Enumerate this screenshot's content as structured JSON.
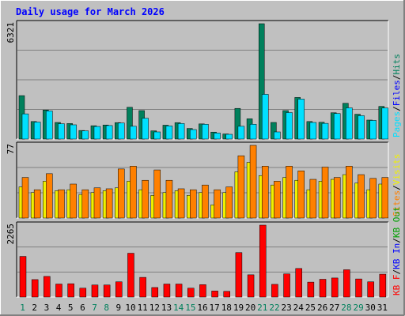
{
  "title": "Daily usage for March 2026",
  "colors": {
    "background": "#c0c0c0",
    "frame_light": "#ffffff",
    "frame_dark": "#808080",
    "plot_bg": "#c0c0c0",
    "gridline": "#808080",
    "title": "#0000ff",
    "hits": "#00805c",
    "files": "#0000ff",
    "pages": "#00e0ff",
    "visits": "#f0f000",
    "sites": "#ff8000",
    "kbf": "#ff0000",
    "kbin": "#0000ff",
    "kbout": "#00a000",
    "weekend_label": "#00805c",
    "weekday_label": "#000000",
    "panel_top_right_label": "#00805c"
  },
  "chart_data": [
    {
      "type": "bar",
      "panel": "top",
      "y_max_label": "6321",
      "ylim": [
        0,
        6321
      ],
      "right_labels": [
        {
          "text": "Pages",
          "color": "#00e0ff"
        },
        {
          "text": "/",
          "color": "#000000"
        },
        {
          "text": "Files",
          "color": "#0000ff"
        },
        {
          "text": "/",
          "color": "#000000"
        },
        {
          "text": "Hits",
          "color": "#00805c"
        }
      ],
      "categories": [
        "1",
        "2",
        "3",
        "4",
        "5",
        "6",
        "7",
        "8",
        "9",
        "10",
        "11",
        "12",
        "13",
        "14",
        "15",
        "16",
        "17",
        "18",
        "19",
        "20",
        "21",
        "22",
        "23",
        "24",
        "25",
        "26",
        "27",
        "28",
        "29",
        "30",
        "31"
      ],
      "series": [
        {
          "name": "Hits",
          "values": [
            2380,
            960,
            1590,
            910,
            850,
            470,
            730,
            770,
            900,
            1740,
            1560,
            450,
            760,
            900,
            580,
            830,
            380,
            280,
            1680,
            1110,
            6321,
            910,
            1560,
            2280,
            960,
            920,
            1440,
            1960,
            1360,
            1040,
            1790
          ]
        },
        {
          "name": "Files",
          "values": [
            2380,
            960,
            1590,
            910,
            850,
            470,
            730,
            770,
            900,
            1740,
            1560,
            450,
            760,
            900,
            580,
            830,
            380,
            280,
            1680,
            1110,
            6321,
            910,
            1560,
            2280,
            960,
            920,
            1440,
            1960,
            1360,
            1040,
            1790
          ]
        },
        {
          "name": "Pages",
          "values": [
            1380,
            930,
            1540,
            840,
            780,
            450,
            690,
            740,
            880,
            700,
            1140,
            390,
            720,
            850,
            520,
            810,
            330,
            260,
            700,
            810,
            2450,
            390,
            1450,
            2190,
            910,
            860,
            1400,
            1710,
            1280,
            1020,
            1700
          ]
        }
      ]
    },
    {
      "type": "bar",
      "panel": "middle",
      "y_max_label": "77",
      "ylim": [
        0,
        77
      ],
      "right_labels": [
        {
          "text": "Sites",
          "color": "#ff8000"
        },
        {
          "text": "/",
          "color": "#000000"
        },
        {
          "text": "Visits",
          "color": "#f0f000"
        }
      ],
      "categories": [
        "1",
        "2",
        "3",
        "4",
        "5",
        "6",
        "7",
        "8",
        "9",
        "10",
        "11",
        "12",
        "13",
        "14",
        "15",
        "16",
        "17",
        "18",
        "19",
        "20",
        "21",
        "22",
        "23",
        "24",
        "25",
        "26",
        "27",
        "28",
        "29",
        "30",
        "31"
      ],
      "series": [
        {
          "name": "Visits",
          "values": [
            33,
            27,
            39,
            29,
            30,
            25,
            27,
            29,
            32,
            39,
            30,
            24,
            27,
            29,
            24,
            27,
            14,
            27,
            49,
            59,
            45,
            35,
            43,
            40,
            30,
            39,
            41,
            46,
            37,
            30,
            36
          ]
        },
        {
          "name": "Sites",
          "values": [
            43,
            30,
            47,
            30,
            36,
            30,
            32,
            31,
            52,
            55,
            40,
            51,
            40,
            31,
            30,
            35,
            30,
            33,
            66,
            77,
            55,
            39,
            55,
            50,
            41,
            54,
            43,
            55,
            46,
            42,
            43
          ]
        }
      ]
    },
    {
      "type": "bar",
      "panel": "bottom",
      "y_max_label": "2265",
      "ylim": [
        0,
        2265
      ],
      "right_labels": [
        {
          "text": "KB F",
          "color": "#ff0000"
        },
        {
          "text": "/",
          "color": "#000000"
        },
        {
          "text": "KB In",
          "color": "#0000ff"
        },
        {
          "text": "/",
          "color": "#000000"
        },
        {
          "text": "KB Out",
          "color": "#00a000"
        }
      ],
      "categories": [
        "1",
        "2",
        "3",
        "4",
        "5",
        "6",
        "7",
        "8",
        "9",
        "10",
        "11",
        "12",
        "13",
        "14",
        "15",
        "16",
        "17",
        "18",
        "19",
        "20",
        "21",
        "22",
        "23",
        "24",
        "25",
        "26",
        "27",
        "28",
        "29",
        "30",
        "31"
      ],
      "series": [
        {
          "name": "KB F",
          "values": [
            1280,
            550,
            650,
            410,
            420,
            280,
            380,
            380,
            480,
            1380,
            620,
            300,
            410,
            410,
            280,
            390,
            190,
            180,
            1400,
            700,
            2265,
            400,
            730,
            900,
            470,
            560,
            600,
            860,
            570,
            480,
            720
          ]
        }
      ]
    }
  ],
  "x_axis": {
    "labels": [
      "1",
      "2",
      "3",
      "4",
      "5",
      "6",
      "7",
      "8",
      "9",
      "10",
      "11",
      "12",
      "13",
      "14",
      "15",
      "16",
      "17",
      "18",
      "19",
      "20",
      "21",
      "22",
      "23",
      "24",
      "25",
      "26",
      "27",
      "28",
      "29",
      "30",
      "31"
    ],
    "weekend_days": [
      "1",
      "7",
      "8",
      "14",
      "15",
      "21",
      "22",
      "28",
      "29"
    ]
  }
}
